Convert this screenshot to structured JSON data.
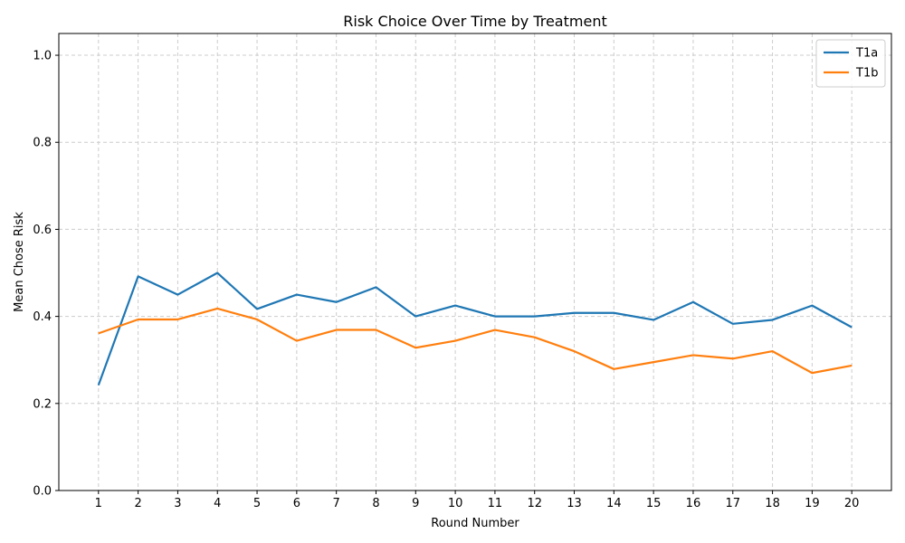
{
  "chart_data": {
    "type": "line",
    "title": "Risk Choice Over Time by Treatment",
    "xlabel": "Round Number",
    "ylabel": "Mean Chose Risk",
    "x": [
      1,
      2,
      3,
      4,
      5,
      6,
      7,
      8,
      9,
      10,
      11,
      12,
      13,
      14,
      15,
      16,
      17,
      18,
      19,
      20
    ],
    "x_tick_labels": [
      "1",
      "2",
      "3",
      "4",
      "5",
      "6",
      "7",
      "8",
      "9",
      "10",
      "11",
      "12",
      "13",
      "14",
      "15",
      "16",
      "17",
      "18",
      "19",
      "20"
    ],
    "xlim": [
      0,
      21
    ],
    "ylim": [
      0.0,
      1.05
    ],
    "y_ticks": [
      0.0,
      0.2,
      0.4,
      0.6,
      0.8,
      1.0
    ],
    "y_tick_labels": [
      "0.0",
      "0.2",
      "0.4",
      "0.6",
      "0.8",
      "1.0"
    ],
    "grid": true,
    "legend_position": "top-right",
    "series": [
      {
        "name": "T1a",
        "color": "#1f77b4",
        "values": [
          0.242,
          0.492,
          0.45,
          0.5,
          0.417,
          0.45,
          0.433,
          0.467,
          0.4,
          0.425,
          0.4,
          0.4,
          0.408,
          0.408,
          0.392,
          0.433,
          0.383,
          0.392,
          0.425,
          0.375
        ]
      },
      {
        "name": "T1b",
        "color": "#ff7f0e",
        "values": [
          0.361,
          0.393,
          0.393,
          0.418,
          0.393,
          0.344,
          0.369,
          0.369,
          0.328,
          0.344,
          0.369,
          0.352,
          0.32,
          0.279,
          0.295,
          0.311,
          0.303,
          0.32,
          0.27,
          0.287
        ]
      }
    ]
  }
}
